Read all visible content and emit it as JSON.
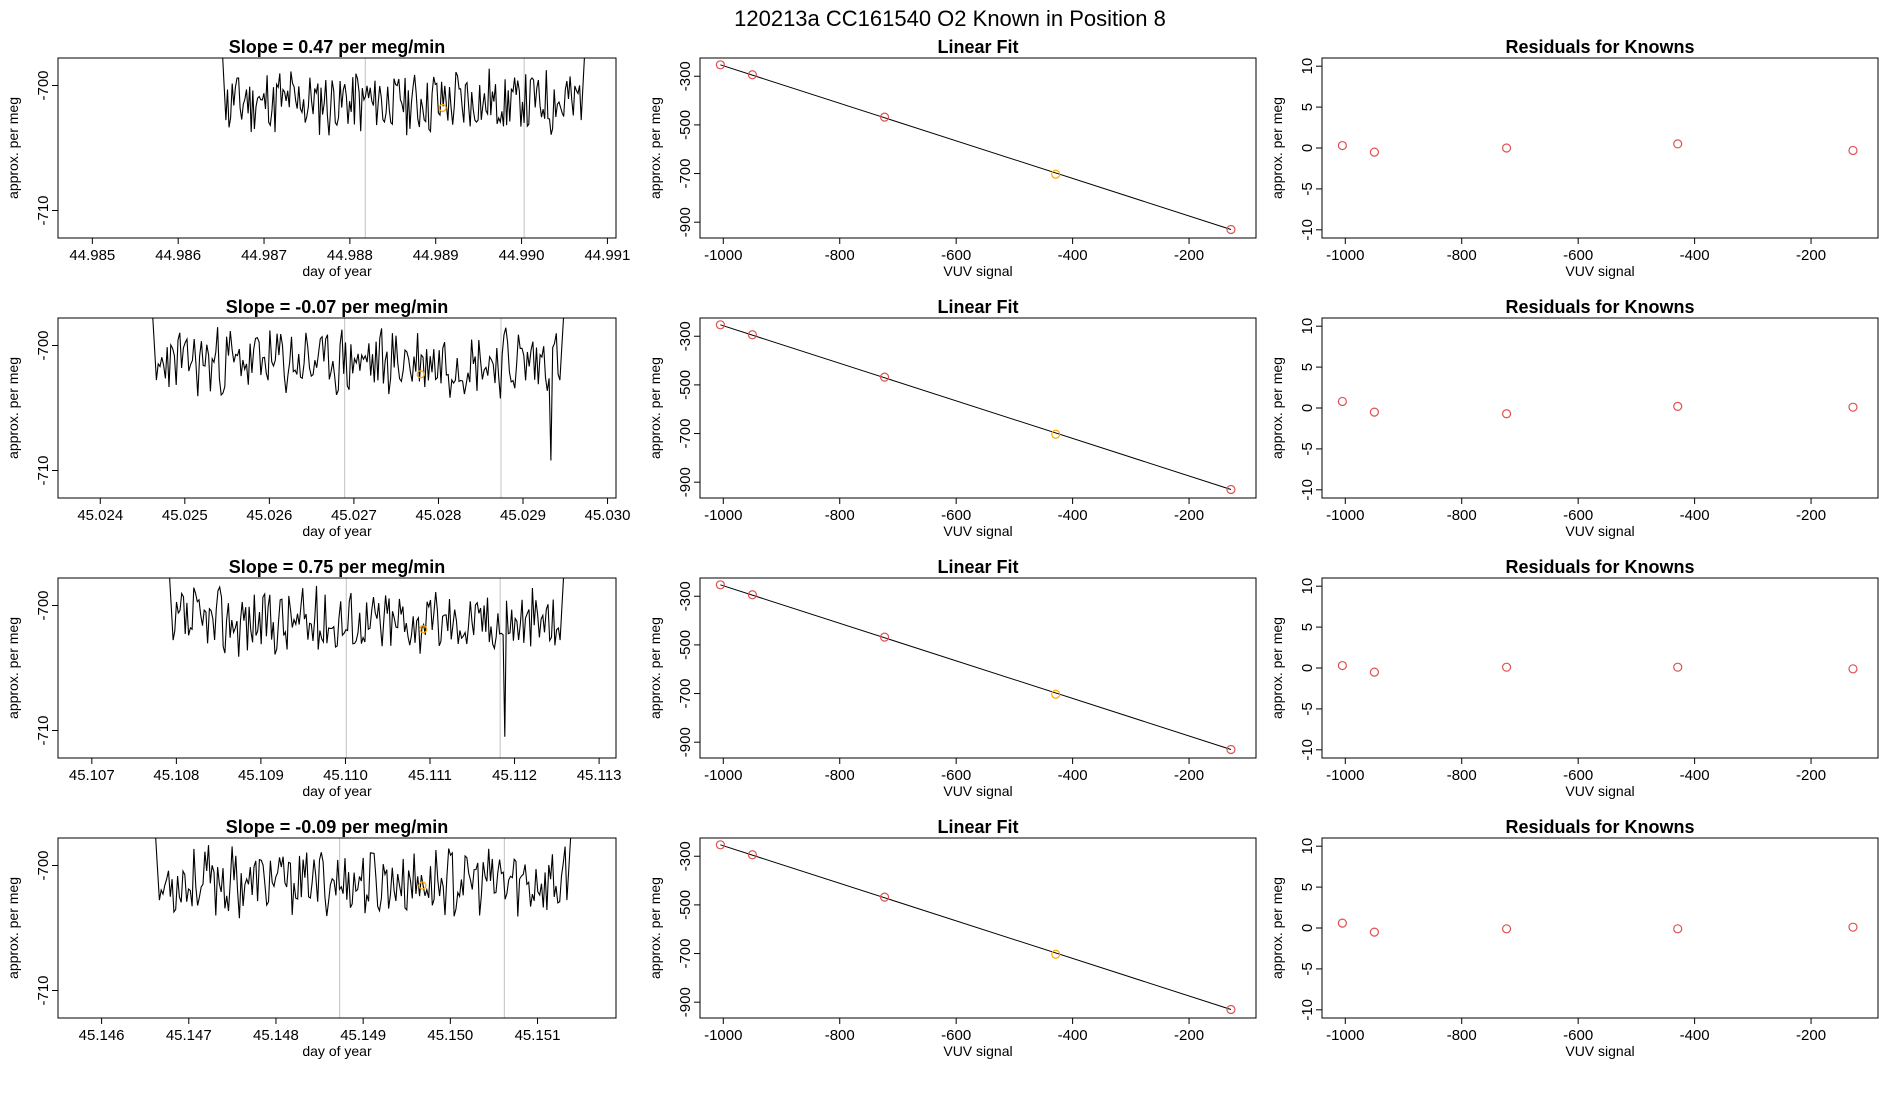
{
  "suptitle": "120213a      CC161540    O2 Known in Position  8",
  "colors": {
    "trace": "#000000",
    "marker": "#e05050",
    "highlight": "#ffa500",
    "vline": "#cccccc"
  },
  "chart_data": [
    {
      "kind": "timeseries",
      "type": "line",
      "row": 0,
      "title": "Slope =  0.47  per meg/min",
      "xlabel": "day of year",
      "ylabel": "approx. per meg",
      "xlim": [
        44.9846,
        44.9911
      ],
      "ylim": [
        -712.2,
        -697.8
      ],
      "xticks": [
        "44.985",
        "44.986",
        "44.987",
        "44.988",
        "44.989",
        "44.990",
        "44.991"
      ],
      "yticks": [
        "-700",
        "-710"
      ],
      "trace_start": 44.9865,
      "trace_end": 44.99075,
      "vlines": [
        44.98818,
        44.99003
      ],
      "highlight": [
        44.98908,
        -701.8
      ],
      "seed": 11,
      "dip": null
    },
    {
      "kind": "fit",
      "type": "scatter",
      "row": 0,
      "title": "Linear Fit",
      "xlabel": "VUV signal",
      "ylabel": "approx. per meg",
      "xlim": [
        -1040,
        -85
      ],
      "ylim": [
        -965,
        -225
      ],
      "xticks": [
        "-1000",
        "-800",
        "-600",
        "-400",
        "-200"
      ],
      "yticks": [
        "-300",
        "-500",
        "-700",
        "-900"
      ],
      "x": [
        -1005,
        -950,
        -723,
        -429,
        -128
      ],
      "y": [
        -253,
        -294,
        -468,
        -703,
        -930
      ],
      "line": [
        [
          -1005,
          -253
        ],
        [
          -128,
          -930
        ]
      ],
      "highlight_index": 3
    },
    {
      "kind": "resid",
      "type": "scatter",
      "row": 0,
      "title": "Residuals for Knowns",
      "xlabel": "VUV signal",
      "ylabel": "approx. per meg",
      "xlim": [
        -1040,
        -85
      ],
      "ylim": [
        -11,
        11
      ],
      "xticks": [
        "-1000",
        "-800",
        "-600",
        "-400",
        "-200"
      ],
      "yticks": [
        "10",
        "5",
        "0",
        "-5",
        "-10"
      ],
      "x": [
        -1005,
        -950,
        -723,
        -429,
        -128
      ],
      "y": [
        0.3,
        -0.5,
        0.0,
        0.5,
        -0.3
      ]
    },
    {
      "kind": "timeseries",
      "type": "line",
      "row": 1,
      "title": "Slope =  -0.07  per meg/min",
      "xlabel": "day of year",
      "ylabel": "approx. per meg",
      "xlim": [
        45.0235,
        45.0301
      ],
      "ylim": [
        -712.2,
        -697.8
      ],
      "xticks": [
        "45.024",
        "45.025",
        "45.026",
        "45.027",
        "45.028",
        "45.029",
        "45.030"
      ],
      "yticks": [
        "-700",
        "-710"
      ],
      "trace_start": 45.0246,
      "trace_end": 45.0295,
      "vlines": [
        45.02689,
        45.02874
      ],
      "highlight": [
        45.02779,
        -702.3
      ],
      "seed": 23,
      "dip": [
        45.02933,
        -709.2
      ]
    },
    {
      "kind": "fit",
      "type": "scatter",
      "row": 1,
      "title": "Linear Fit",
      "xlabel": "VUV signal",
      "ylabel": "approx. per meg",
      "xlim": [
        -1040,
        -85
      ],
      "ylim": [
        -965,
        -225
      ],
      "xticks": [
        "-1000",
        "-800",
        "-600",
        "-400",
        "-200"
      ],
      "yticks": [
        "-300",
        "-500",
        "-700",
        "-900"
      ],
      "x": [
        -1005,
        -950,
        -723,
        -429,
        -128
      ],
      "y": [
        -253,
        -294,
        -468,
        -703,
        -930
      ],
      "line": [
        [
          -1005,
          -253
        ],
        [
          -128,
          -930
        ]
      ],
      "highlight_index": 3
    },
    {
      "kind": "resid",
      "type": "scatter",
      "row": 1,
      "title": "Residuals for Knowns",
      "xlabel": "VUV signal",
      "ylabel": "approx. per meg",
      "xlim": [
        -1040,
        -85
      ],
      "ylim": [
        -11,
        11
      ],
      "xticks": [
        "-1000",
        "-800",
        "-600",
        "-400",
        "-200"
      ],
      "yticks": [
        "10",
        "5",
        "0",
        "-5",
        "-10"
      ],
      "x": [
        -1005,
        -950,
        -723,
        -429,
        -128
      ],
      "y": [
        0.8,
        -0.5,
        -0.7,
        0.2,
        0.1
      ]
    },
    {
      "kind": "timeseries",
      "type": "line",
      "row": 2,
      "title": "Slope =  0.75  per meg/min",
      "xlabel": "day of year",
      "ylabel": "approx. per meg",
      "xlim": [
        45.1066,
        45.1132
      ],
      "ylim": [
        -712.2,
        -697.8
      ],
      "xticks": [
        "45.107",
        "45.108",
        "45.109",
        "45.110",
        "45.111",
        "45.112",
        "45.113"
      ],
      "yticks": [
        "-700",
        "-710"
      ],
      "trace_start": 45.1079,
      "trace_end": 45.1126,
      "vlines": [
        45.11001,
        45.11183
      ],
      "highlight": [
        45.11092,
        -701.9
      ],
      "seed": 37,
      "dip": [
        45.11188,
        -710.5
      ]
    },
    {
      "kind": "fit",
      "type": "scatter",
      "row": 2,
      "title": "Linear Fit",
      "xlabel": "VUV signal",
      "ylabel": "approx. per meg",
      "xlim": [
        -1040,
        -85
      ],
      "ylim": [
        -965,
        -225
      ],
      "xticks": [
        "-1000",
        "-800",
        "-600",
        "-400",
        "-200"
      ],
      "yticks": [
        "-300",
        "-500",
        "-700",
        "-900"
      ],
      "x": [
        -1005,
        -950,
        -723,
        -429,
        -128
      ],
      "y": [
        -253,
        -294,
        -468,
        -703,
        -930
      ],
      "line": [
        [
          -1005,
          -253
        ],
        [
          -128,
          -930
        ]
      ],
      "highlight_index": 3
    },
    {
      "kind": "resid",
      "type": "scatter",
      "row": 2,
      "title": "Residuals for Knowns",
      "xlabel": "VUV signal",
      "ylabel": "approx. per meg",
      "xlim": [
        -1040,
        -85
      ],
      "ylim": [
        -11,
        11
      ],
      "xticks": [
        "-1000",
        "-800",
        "-600",
        "-400",
        "-200"
      ],
      "yticks": [
        "10",
        "5",
        "0",
        "-5",
        "-10"
      ],
      "x": [
        -1005,
        -950,
        -723,
        -429,
        -128
      ],
      "y": [
        0.3,
        -0.5,
        0.1,
        0.1,
        -0.1
      ]
    },
    {
      "kind": "timeseries",
      "type": "line",
      "row": 3,
      "title": "Slope =  -0.09  per meg/min",
      "xlabel": "day of year",
      "ylabel": "approx. per meg",
      "xlim": [
        45.1455,
        45.1519
      ],
      "ylim": [
        -712.2,
        -697.8
      ],
      "xticks": [
        "45.146",
        "45.147",
        "45.148",
        "45.149",
        "45.150",
        "45.151"
      ],
      "yticks": [
        "-700",
        "-710"
      ],
      "trace_start": 45.1466,
      "trace_end": 45.1514,
      "vlines": [
        45.14873,
        45.15062
      ],
      "highlight": [
        45.14968,
        -701.6
      ],
      "seed": 53,
      "dip": null
    },
    {
      "kind": "fit",
      "type": "scatter",
      "row": 3,
      "title": "Linear Fit",
      "xlabel": "VUV signal",
      "ylabel": "approx. per meg",
      "xlim": [
        -1040,
        -85
      ],
      "ylim": [
        -965,
        -225
      ],
      "xticks": [
        "-1000",
        "-800",
        "-600",
        "-400",
        "-200"
      ],
      "yticks": [
        "-300",
        "-500",
        "-700",
        "-900"
      ],
      "x": [
        -1005,
        -950,
        -723,
        -429,
        -128
      ],
      "y": [
        -253,
        -294,
        -468,
        -703,
        -930
      ],
      "line": [
        [
          -1005,
          -253
        ],
        [
          -128,
          -930
        ]
      ],
      "highlight_index": 3
    },
    {
      "kind": "resid",
      "type": "scatter",
      "row": 3,
      "title": "Residuals for Knowns",
      "xlabel": "VUV signal",
      "ylabel": "approx. per meg",
      "xlim": [
        -1040,
        -85
      ],
      "ylim": [
        -11,
        11
      ],
      "xticks": [
        "-1000",
        "-800",
        "-600",
        "-400",
        "-200"
      ],
      "yticks": [
        "10",
        "5",
        "0",
        "-5",
        "-10"
      ],
      "x": [
        -1005,
        -950,
        -723,
        -429,
        -128
      ],
      "y": [
        0.6,
        -0.5,
        -0.1,
        -0.1,
        0.1
      ]
    }
  ]
}
